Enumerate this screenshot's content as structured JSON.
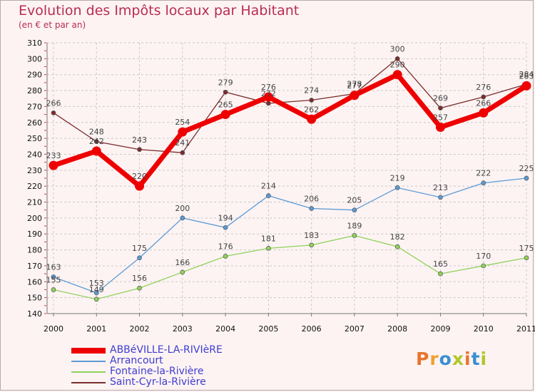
{
  "title": "Evolution des Impôts locaux par Habitant",
  "subtitle": "(en € et par an)",
  "logo": {
    "text": "Proxiti",
    "letter_colors": [
      "#e8742e",
      "#f0a030",
      "#3a8fd0",
      "#b0c829",
      "#e8742e",
      "#3a8fd0",
      "#b0c829"
    ]
  },
  "chart_data": {
    "type": "line",
    "x": [
      "2000",
      "2001",
      "2002",
      "2003",
      "2004",
      "2005",
      "2006",
      "2007",
      "2008",
      "2009",
      "2010",
      "2011"
    ],
    "ylim": [
      140,
      310
    ],
    "yticks": [
      140,
      150,
      160,
      170,
      180,
      190,
      200,
      210,
      220,
      230,
      240,
      250,
      260,
      270,
      280,
      290,
      300,
      310
    ],
    "grid": true,
    "legend_position": "bottom-left",
    "series": [
      {
        "name": "ABBéVILLE-LA-RIVIèRE",
        "color": "#ee0000",
        "values": [
          233,
          242,
          220,
          254,
          265,
          276,
          262,
          277,
          290,
          257,
          266,
          283
        ]
      },
      {
        "name": "Arrancourt",
        "color": "#5b9bd5",
        "values": [
          163,
          153,
          175,
          200,
          194,
          214,
          206,
          205,
          219,
          213,
          222,
          225
        ]
      },
      {
        "name": "Fontaine-la-Rivière",
        "color": "#8fd25a",
        "values": [
          155,
          149,
          156,
          166,
          176,
          181,
          183,
          189,
          182,
          165,
          170,
          175
        ]
      },
      {
        "name": "Saint-Cyr-la-Rivière",
        "color": "#7b2c2c",
        "values": [
          266,
          248,
          243,
          241,
          279,
          272,
          274,
          278,
          300,
          269,
          276,
          284
        ]
      }
    ]
  }
}
